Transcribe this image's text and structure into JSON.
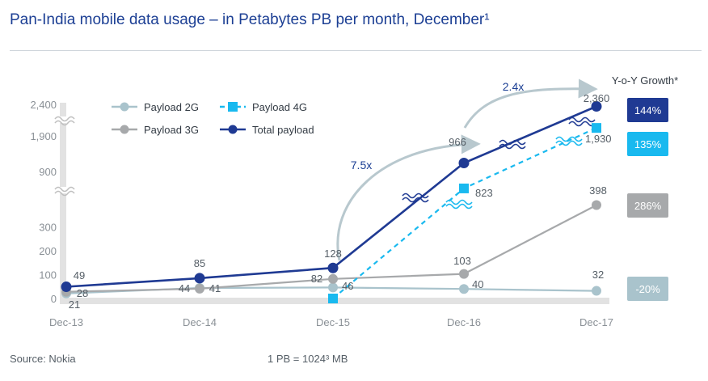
{
  "title": "Pan-India mobile data usage – in Petabytes PB per month, December¹",
  "footer": {
    "source": "Source: Nokia",
    "note": "1 PB =  1024³ MB"
  },
  "chart_data": {
    "type": "line",
    "title": "Pan-India mobile data usage – in Petabytes PB per month, December¹",
    "categories": [
      "Dec-13",
      "Dec-14",
      "Dec-15",
      "Dec-16",
      "Dec-17"
    ],
    "y_ticks": [
      "0",
      "100",
      "200",
      "300",
      "900",
      "1,900",
      "2,400"
    ],
    "y_axis_broken": true,
    "grid": false,
    "legend_position": "top-left",
    "series": [
      {
        "name": "Payload 2G",
        "color": "#a9c3cc",
        "dash": false,
        "marker": "circle",
        "values": [
          21,
          44,
          46,
          40,
          32
        ],
        "labels": [
          "21",
          "",
          "46",
          "40",
          "32"
        ]
      },
      {
        "name": "Payload 4G",
        "color": "#19b9ef",
        "dash": true,
        "marker": "square",
        "values": [
          null,
          null,
          0,
          823,
          1930
        ],
        "labels": [
          "",
          "",
          "",
          "823",
          "1,930"
        ]
      },
      {
        "name": "Payload 3G",
        "color": "#a7a9ab",
        "dash": false,
        "marker": "circle",
        "values": [
          28,
          41,
          82,
          103,
          398
        ],
        "labels": [
          "28",
          "41",
          "82",
          "103",
          "398"
        ]
      },
      {
        "name": "Total payload",
        "color": "#1f3a93",
        "dash": false,
        "marker": "circle",
        "values": [
          49,
          85,
          128,
          966,
          2360
        ],
        "labels": [
          "49",
          "85",
          "128",
          "966",
          "2,360"
        ]
      }
    ],
    "extra_labels": [
      "44"
    ],
    "annotations": [
      {
        "text": "7.5x",
        "from": "Dec-15",
        "to": "Dec-16"
      },
      {
        "text": "2.4x",
        "from": "Dec-16",
        "to": "Dec-17"
      }
    ],
    "growth": {
      "title": "Y-o-Y Growth*",
      "items": [
        {
          "series": "Total payload",
          "value": "144%",
          "color": "#1f3a93"
        },
        {
          "series": "Payload 4G",
          "value": "135%",
          "color": "#19b9ef"
        },
        {
          "series": "Payload 3G",
          "value": "286%",
          "color": "#a7a9ab"
        },
        {
          "series": "Payload 2G",
          "value": "-20%",
          "color": "#a9c3cc"
        }
      ]
    }
  }
}
